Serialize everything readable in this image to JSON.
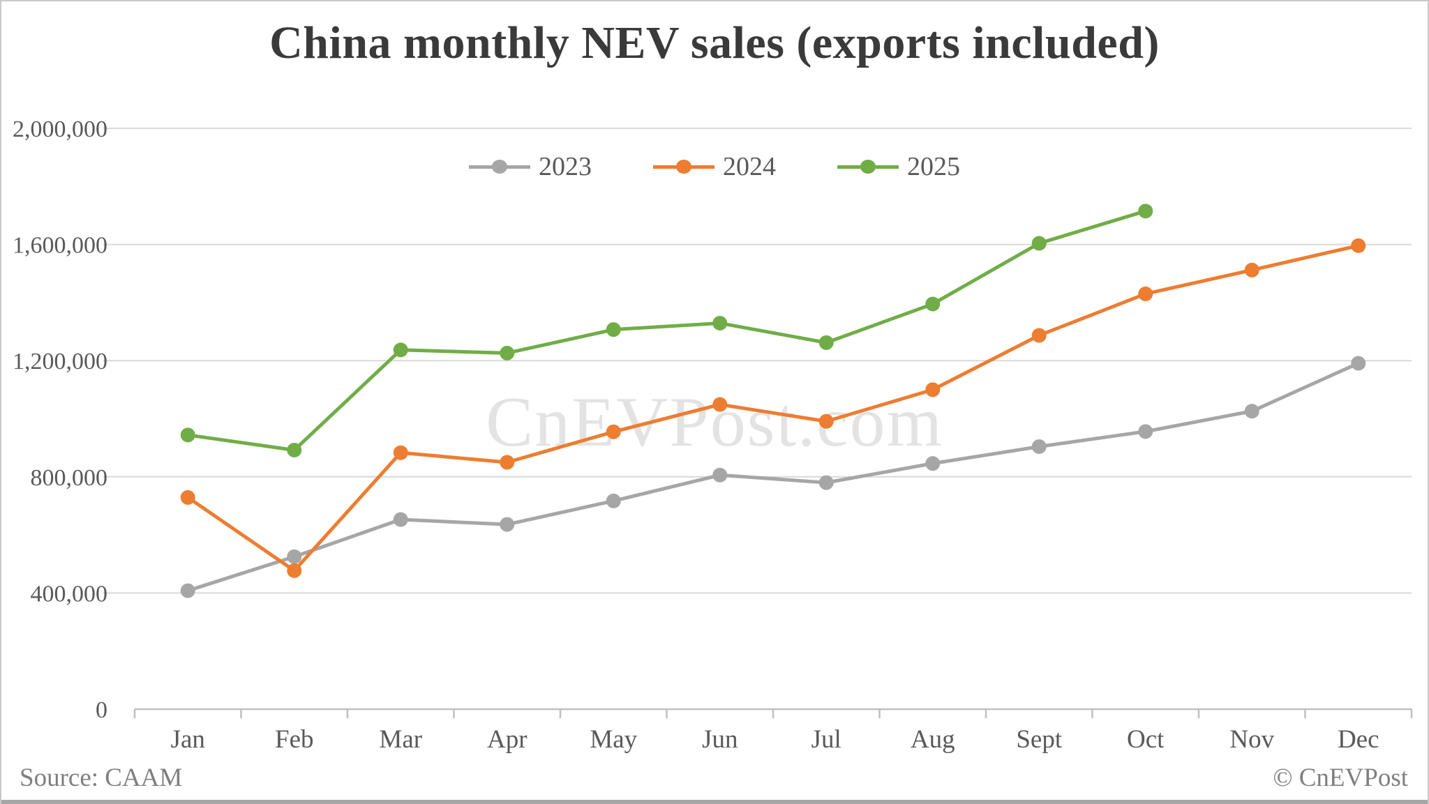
{
  "title": "China monthly NEV sales (exports included)",
  "watermark": "CnEVPost.com",
  "footer": {
    "source": "Source: CAAM",
    "credit": "© CnEVPost"
  },
  "colors": {
    "title_text": "#3a3a3a",
    "axis_text": "#595959",
    "gridline": "#d9d9d9",
    "axis_line": "#bfbfbf",
    "watermark_text": "#e3e3e3",
    "footer_text": "#7f7f7f",
    "bottom_bar": "#a6a6a6"
  },
  "chart_data": {
    "type": "line",
    "title": "China monthly NEV sales (exports included)",
    "xlabel": "",
    "ylabel": "",
    "categories": [
      "Jan",
      "Feb",
      "Mar",
      "Apr",
      "May",
      "Jun",
      "Jul",
      "Aug",
      "Sept",
      "Oct",
      "Nov",
      "Dec"
    ],
    "series": [
      {
        "name": "2023",
        "color": "#a6a6a6",
        "values": [
          408000,
          525000,
          653000,
          636000,
          717000,
          806000,
          780000,
          846000,
          904000,
          956000,
          1026000,
          1191000
        ]
      },
      {
        "name": "2024",
        "color": "#ed7d31",
        "values": [
          729000,
          477000,
          883000,
          850000,
          955000,
          1049000,
          991000,
          1100000,
          1287000,
          1430000,
          1512000,
          1596000
        ]
      },
      {
        "name": "2025",
        "color": "#70ad47",
        "values": [
          944000,
          892000,
          1237000,
          1226000,
          1307000,
          1329000,
          1262000,
          1395000,
          1604000,
          1715000,
          null,
          null
        ]
      }
    ],
    "ylim": [
      0,
      2000000
    ],
    "y_ticks": [
      0,
      400000,
      800000,
      1200000,
      1600000,
      2000000
    ],
    "grid": true,
    "legend_position": "top-center"
  }
}
